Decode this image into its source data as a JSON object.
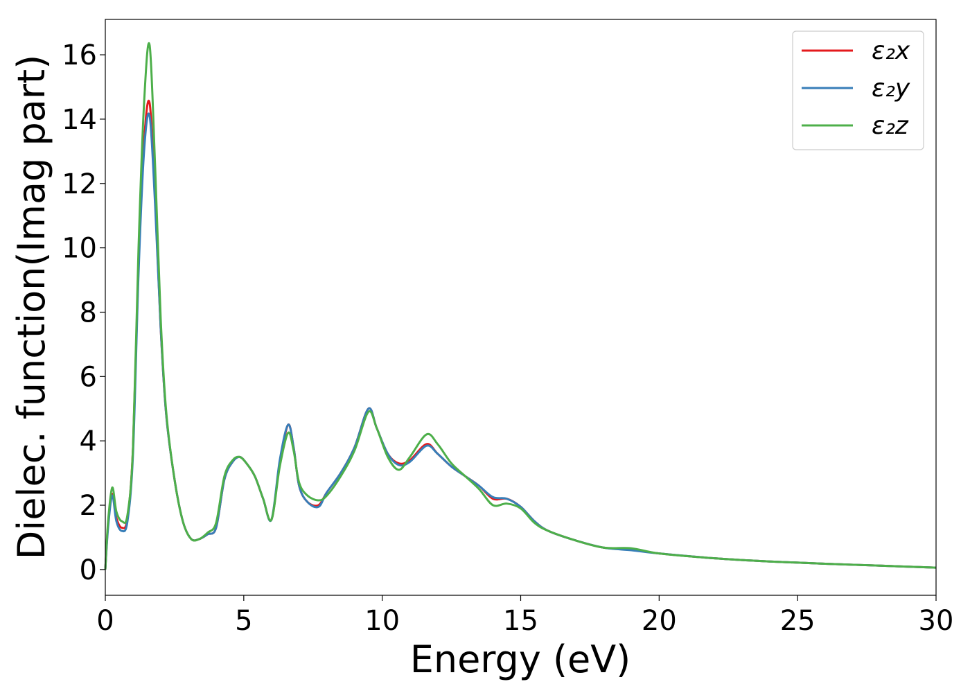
{
  "chart_data": {
    "type": "line",
    "title": "",
    "xlabel": "Energy (eV)",
    "ylabel": "Dielec. function(Imag part)",
    "xlim": [
      0,
      30
    ],
    "ylim": [
      -0.8,
      17.1
    ],
    "xticks": [
      0,
      5,
      10,
      15,
      20,
      25,
      30
    ],
    "yticks": [
      0,
      2,
      4,
      6,
      8,
      10,
      12,
      14,
      16
    ],
    "grid": false,
    "legend_position": "top-right",
    "x": [
      0,
      0.1,
      0.25,
      0.4,
      0.6,
      0.8,
      1.0,
      1.2,
      1.4,
      1.6,
      1.8,
      2.0,
      2.2,
      2.5,
      2.8,
      3.1,
      3.4,
      3.7,
      4.0,
      4.3,
      4.6,
      4.85,
      5.1,
      5.4,
      5.7,
      6.0,
      6.3,
      6.6,
      6.8,
      7.0,
      7.3,
      7.7,
      8.0,
      8.5,
      9.0,
      9.5,
      9.8,
      10.2,
      10.6,
      11.0,
      11.6,
      12.0,
      12.5,
      13.0,
      13.5,
      14.0,
      14.5,
      15.0,
      15.5,
      16.0,
      17.0,
      18.0,
      19.0,
      20.0,
      22.0,
      24.0,
      26.0,
      28.0,
      30.0
    ],
    "series": [
      {
        "name": "ε₂x",
        "color": "#e41a1c",
        "values": [
          0,
          1.4,
          2.35,
          1.6,
          1.3,
          1.6,
          3.8,
          9.5,
          13.3,
          14.5,
          11.5,
          7.5,
          4.8,
          2.8,
          1.5,
          0.95,
          0.95,
          1.1,
          1.3,
          2.8,
          3.35,
          3.5,
          3.3,
          2.9,
          2.2,
          1.55,
          3.3,
          4.5,
          3.8,
          2.6,
          2.1,
          2.0,
          2.4,
          3.0,
          3.8,
          5.0,
          4.4,
          3.6,
          3.3,
          3.4,
          3.9,
          3.6,
          3.2,
          2.9,
          2.6,
          2.2,
          2.2,
          1.95,
          1.5,
          1.2,
          0.9,
          0.68,
          0.62,
          0.5,
          0.35,
          0.25,
          0.18,
          0.12,
          0.06
        ]
      },
      {
        "name": "ε₂y",
        "color": "#377eb8",
        "values": [
          0,
          1.3,
          2.3,
          1.5,
          1.2,
          1.5,
          3.6,
          9.2,
          13.0,
          14.1,
          11.3,
          7.5,
          4.8,
          2.8,
          1.5,
          0.95,
          0.95,
          1.1,
          1.3,
          2.8,
          3.35,
          3.5,
          3.3,
          2.9,
          2.2,
          1.55,
          3.4,
          4.5,
          3.8,
          2.6,
          2.1,
          1.95,
          2.4,
          3.0,
          3.8,
          5.0,
          4.4,
          3.6,
          3.25,
          3.35,
          3.85,
          3.6,
          3.2,
          2.9,
          2.6,
          2.25,
          2.2,
          1.95,
          1.5,
          1.2,
          0.9,
          0.68,
          0.6,
          0.5,
          0.35,
          0.25,
          0.18,
          0.12,
          0.06
        ]
      },
      {
        "name": "ε₂z",
        "color": "#4daf4a",
        "values": [
          0,
          1.5,
          2.55,
          1.8,
          1.5,
          1.7,
          3.8,
          10.0,
          14.5,
          16.3,
          12.5,
          7.8,
          4.9,
          2.8,
          1.5,
          0.95,
          0.95,
          1.15,
          1.45,
          2.9,
          3.4,
          3.5,
          3.3,
          2.9,
          2.2,
          1.55,
          3.2,
          4.25,
          3.7,
          2.7,
          2.3,
          2.15,
          2.3,
          2.9,
          3.7,
          4.9,
          4.4,
          3.5,
          3.1,
          3.5,
          4.2,
          3.9,
          3.3,
          2.9,
          2.5,
          2.0,
          2.05,
          1.9,
          1.45,
          1.2,
          0.9,
          0.68,
          0.66,
          0.5,
          0.35,
          0.25,
          0.18,
          0.12,
          0.06
        ]
      }
    ]
  }
}
